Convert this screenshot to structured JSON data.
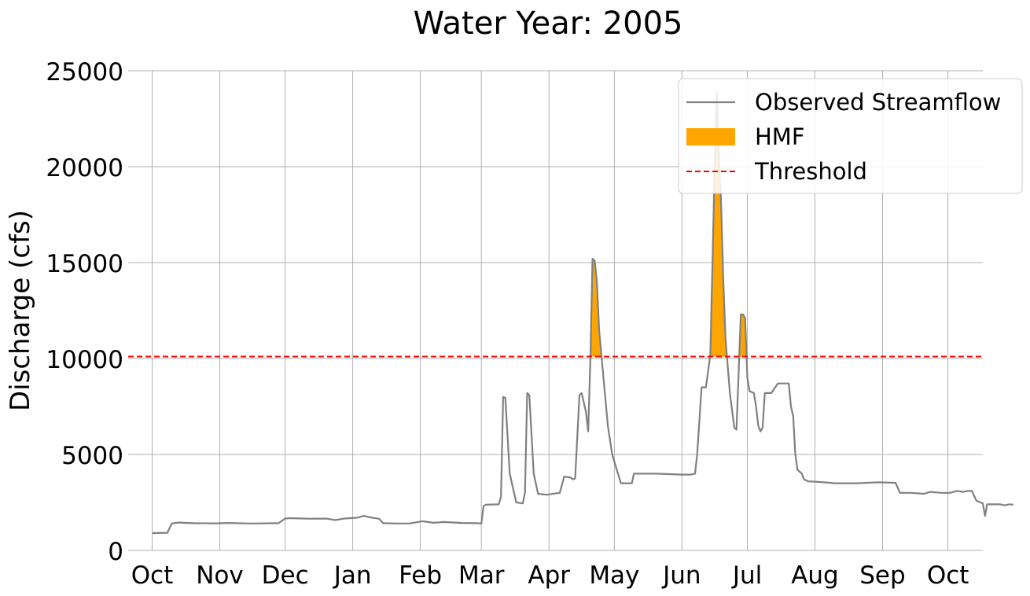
{
  "chart_data": {
    "type": "line",
    "title": "Water Year: 2005",
    "xlabel": "",
    "ylabel": "Discharge (cfs)",
    "ylim": [
      0,
      25000
    ],
    "yticks": [
      0,
      5000,
      10000,
      15000,
      20000,
      25000
    ],
    "xlim": [
      "2004-09-20",
      "2005-10-17"
    ],
    "xticks": [
      {
        "date": "2004-10-01",
        "label": "Oct"
      },
      {
        "date": "2004-11-01",
        "label": "Nov"
      },
      {
        "date": "2004-12-01",
        "label": "Dec"
      },
      {
        "date": "2005-01-01",
        "label": "Jan"
      },
      {
        "date": "2005-02-01",
        "label": "Feb"
      },
      {
        "date": "2005-03-01",
        "label": "Mar"
      },
      {
        "date": "2005-04-01",
        "label": "Apr"
      },
      {
        "date": "2005-05-01",
        "label": "May"
      },
      {
        "date": "2005-06-01",
        "label": "Jun"
      },
      {
        "date": "2005-07-01",
        "label": "Jul"
      },
      {
        "date": "2005-08-01",
        "label": "Aug"
      },
      {
        "date": "2005-09-01",
        "label": "Sep"
      },
      {
        "date": "2005-10-01",
        "label": "Oct"
      }
    ],
    "grid": true,
    "legend_position": "top-right",
    "threshold": 10100,
    "series": [
      {
        "name": "Observed Streamflow",
        "color": "#808080",
        "points": [
          [
            "2004-10-01",
            900
          ],
          [
            "2004-10-08",
            920
          ],
          [
            "2004-10-10",
            1400
          ],
          [
            "2004-10-13",
            1450
          ],
          [
            "2004-10-20",
            1420
          ],
          [
            "2004-10-30",
            1410
          ],
          [
            "2004-11-05",
            1430
          ],
          [
            "2004-11-15",
            1400
          ],
          [
            "2004-11-28",
            1420
          ],
          [
            "2004-12-01",
            1660
          ],
          [
            "2004-12-03",
            1680
          ],
          [
            "2004-12-12",
            1650
          ],
          [
            "2004-12-20",
            1660
          ],
          [
            "2004-12-24",
            1580
          ],
          [
            "2004-12-28",
            1660
          ],
          [
            "2005-01-03",
            1700
          ],
          [
            "2005-01-06",
            1800
          ],
          [
            "2005-01-10",
            1700
          ],
          [
            "2005-01-13",
            1650
          ],
          [
            "2005-01-15",
            1420
          ],
          [
            "2005-01-22",
            1400
          ],
          [
            "2005-01-27",
            1400
          ],
          [
            "2005-02-02",
            1520
          ],
          [
            "2005-02-07",
            1440
          ],
          [
            "2005-02-12",
            1480
          ],
          [
            "2005-02-20",
            1430
          ],
          [
            "2005-02-27",
            1420
          ],
          [
            "2005-03-01",
            1400
          ],
          [
            "2005-03-02",
            2300
          ],
          [
            "2005-03-03",
            2380
          ],
          [
            "2005-03-09",
            2400
          ],
          [
            "2005-03-10",
            2800
          ],
          [
            "2005-03-11",
            8000
          ],
          [
            "2005-03-12",
            7950
          ],
          [
            "2005-03-14",
            4000
          ],
          [
            "2005-03-17",
            2500
          ],
          [
            "2005-03-20",
            2450
          ],
          [
            "2005-03-21",
            3000
          ],
          [
            "2005-03-22",
            8200
          ],
          [
            "2005-03-23",
            8100
          ],
          [
            "2005-03-25",
            4000
          ],
          [
            "2005-03-27",
            2950
          ],
          [
            "2005-03-31",
            2900
          ],
          [
            "2005-04-06",
            3000
          ],
          [
            "2005-04-08",
            3850
          ],
          [
            "2005-04-11",
            3800
          ],
          [
            "2005-04-12",
            3700
          ],
          [
            "2005-04-13",
            3750
          ],
          [
            "2005-04-15",
            8100
          ],
          [
            "2005-04-16",
            8200
          ],
          [
            "2005-04-18",
            7200
          ],
          [
            "2005-04-19",
            6200
          ],
          [
            "2005-04-20",
            10000
          ],
          [
            "2005-04-21",
            15200
          ],
          [
            "2005-04-22",
            15100
          ],
          [
            "2005-04-23",
            14000
          ],
          [
            "2005-04-24",
            11500
          ],
          [
            "2005-04-26",
            9000
          ],
          [
            "2005-04-28",
            6500
          ],
          [
            "2005-04-30",
            5000
          ],
          [
            "2005-05-04",
            3500
          ],
          [
            "2005-05-09",
            3500
          ],
          [
            "2005-05-10",
            4000
          ],
          [
            "2005-05-20",
            4000
          ],
          [
            "2005-06-01",
            3950
          ],
          [
            "2005-06-05",
            3950
          ],
          [
            "2005-06-07",
            4000
          ],
          [
            "2005-06-08",
            5000
          ],
          [
            "2005-06-10",
            8500
          ],
          [
            "2005-06-12",
            8500
          ],
          [
            "2005-06-14",
            10200
          ],
          [
            "2005-06-15",
            15000
          ],
          [
            "2005-06-16",
            20000
          ],
          [
            "2005-06-17",
            23900
          ],
          [
            "2005-06-18",
            20500
          ],
          [
            "2005-06-19",
            18000
          ],
          [
            "2005-06-20",
            14000
          ],
          [
            "2005-06-21",
            11000
          ],
          [
            "2005-06-23",
            8200
          ],
          [
            "2005-06-25",
            6400
          ],
          [
            "2005-06-26",
            6300
          ],
          [
            "2005-06-28",
            12300
          ],
          [
            "2005-06-29",
            12300
          ],
          [
            "2005-06-30",
            12100
          ],
          [
            "2005-07-01",
            9000
          ],
          [
            "2005-07-02",
            8300
          ],
          [
            "2005-07-04",
            8200
          ],
          [
            "2005-07-05",
            7500
          ],
          [
            "2005-07-06",
            6500
          ],
          [
            "2005-07-07",
            6200
          ],
          [
            "2005-07-08",
            6400
          ],
          [
            "2005-07-09",
            8200
          ],
          [
            "2005-07-12",
            8200
          ],
          [
            "2005-07-15",
            8700
          ],
          [
            "2005-07-20",
            8700
          ],
          [
            "2005-07-21",
            7500
          ],
          [
            "2005-07-22",
            7000
          ],
          [
            "2005-07-23",
            5000
          ],
          [
            "2005-07-24",
            4200
          ],
          [
            "2005-07-26",
            4000
          ],
          [
            "2005-07-27",
            3700
          ],
          [
            "2005-07-29",
            3600
          ],
          [
            "2005-08-01",
            3580
          ],
          [
            "2005-08-05",
            3550
          ],
          [
            "2005-08-10",
            3500
          ],
          [
            "2005-08-20",
            3500
          ],
          [
            "2005-08-30",
            3550
          ],
          [
            "2005-09-07",
            3520
          ],
          [
            "2005-09-09",
            3000
          ],
          [
            "2005-09-14",
            3000
          ],
          [
            "2005-09-20",
            2950
          ],
          [
            "2005-09-23",
            3050
          ],
          [
            "2005-09-28",
            3000
          ],
          [
            "2005-10-02",
            3000
          ],
          [
            "2005-10-05",
            3100
          ],
          [
            "2005-10-08",
            3050
          ],
          [
            "2005-10-10",
            3100
          ],
          [
            "2005-10-12",
            3100
          ],
          [
            "2005-10-14",
            2600
          ],
          [
            "2005-10-16",
            2500
          ],
          [
            "2005-10-17",
            2450
          ],
          [
            "2005-10-18",
            1800
          ],
          [
            "2005-10-19",
            2400
          ],
          [
            "2005-10-22",
            2400
          ],
          [
            "2005-10-25",
            2400
          ],
          [
            "2005-10-27",
            2350
          ],
          [
            "2005-10-29",
            2400
          ],
          [
            "2005-10-31",
            2380
          ]
        ]
      }
    ],
    "legend": [
      {
        "label": "Observed Streamflow",
        "kind": "line",
        "color": "#808080"
      },
      {
        "label": "HMF",
        "kind": "fill",
        "color": "#FFA500"
      },
      {
        "label": "Threshold",
        "kind": "dashed",
        "color": "#FF0000"
      }
    ]
  }
}
